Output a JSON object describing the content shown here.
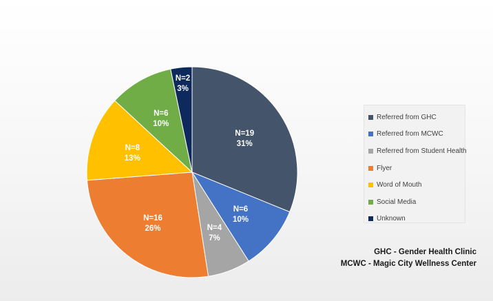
{
  "chart_data": {
    "type": "pie",
    "title": "",
    "slices": [
      {
        "name": "Referred from GHC",
        "value": 19,
        "n_label": "N=19",
        "pct_label": "31%",
        "color": "#44546a"
      },
      {
        "name": "Referred from MCWC",
        "value": 6,
        "n_label": "N=6",
        "pct_label": "10%",
        "color": "#4472c4"
      },
      {
        "name": "Referred from Student Health",
        "value": 4,
        "n_label": "N=4",
        "pct_label": "7%",
        "color": "#a5a5a5"
      },
      {
        "name": "Flyer",
        "value": 16,
        "n_label": "N=16",
        "pct_label": "26%",
        "color": "#ed7d31"
      },
      {
        "name": "Word of Mouth",
        "value": 8,
        "n_label": "N=8",
        "pct_label": "13%",
        "color": "#ffc000"
      },
      {
        "name": "Social Media",
        "value": 6,
        "n_label": "N=6",
        "pct_label": "10%",
        "color": "#70ad47"
      },
      {
        "name": "Unknown",
        "value": 2,
        "n_label": "N=2",
        "pct_label": "3%",
        "color": "#0e2a5c"
      }
    ],
    "legend_position": "right",
    "notes": [
      "GHC - Gender Health Clinic",
      "MCWC - Magic City Wellness Center"
    ]
  }
}
